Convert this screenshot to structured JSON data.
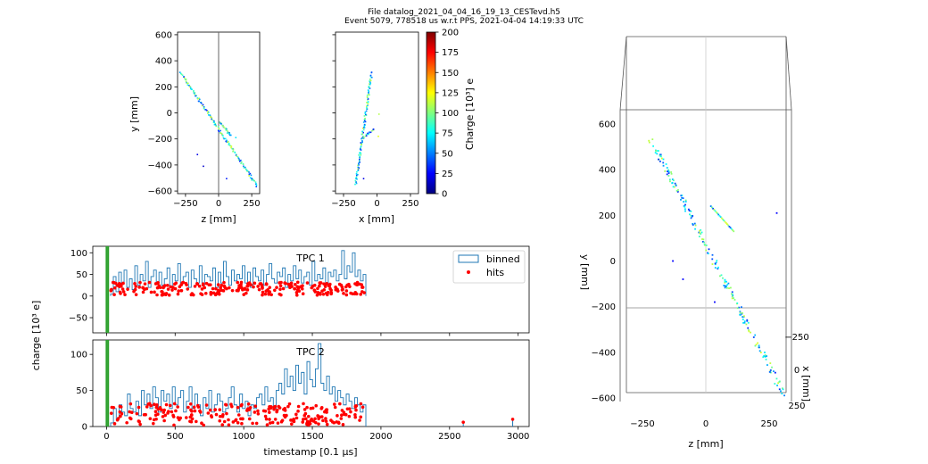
{
  "header": {
    "line1": "File datalog_2021_04_04_16_19_13_CESTevd.h5",
    "line2": "Event 5079, 778518 us w.r.t PPS, 2021-04-04 14:19:33 UTC"
  },
  "chart_data": [
    {
      "id": "zy",
      "type": "scatter",
      "xlabel": "z [mm]",
      "ylabel": "y [mm]",
      "xlim": [
        -310,
        310
      ],
      "ylim": [
        -620,
        620
      ],
      "xticks": [
        -250,
        0,
        250
      ],
      "yticks": [
        600,
        400,
        200,
        0,
        -200,
        -400,
        -600
      ],
      "vline": 0,
      "tracks": [
        {
          "from": [
            -285,
            305
          ],
          "to": [
            290,
            -560
          ],
          "n": 140
        },
        {
          "from": [
            10,
            -70
          ],
          "to": [
            90,
            -175
          ],
          "n": 25
        }
      ],
      "points": [
        {
          "x": -160,
          "y": -320,
          "q": 20
        },
        {
          "x": -115,
          "y": -410,
          "q": 15
        },
        {
          "x": 60,
          "y": -505,
          "q": 30
        },
        {
          "x": 130,
          "y": -190,
          "q": 70
        }
      ]
    },
    {
      "id": "xy",
      "type": "scatter",
      "xlabel": "x [mm]",
      "xlim": [
        -310,
        310
      ],
      "ylim": [
        -620,
        620
      ],
      "xticks": [
        -250,
        0,
        250
      ],
      "tracks": [
        {
          "from": [
            -160,
            -550
          ],
          "to": [
            -40,
            310
          ],
          "n": 110
        },
        {
          "from": [
            -110,
            -200
          ],
          "to": [
            -20,
            -120
          ],
          "n": 18
        }
      ],
      "points": [
        {
          "x": -100,
          "y": -505,
          "q": 20
        },
        {
          "x": 15,
          "y": -10,
          "q": 110
        },
        {
          "x": 10,
          "y": -180,
          "q": 120
        }
      ]
    },
    {
      "id": "colorbar",
      "type": "colorbar",
      "label": "Charge [10³] e",
      "min": 0,
      "max": 200,
      "ticks": [
        200,
        175,
        150,
        125,
        100,
        75,
        50,
        25,
        0
      ]
    },
    {
      "id": "tpc1",
      "type": "bar",
      "title": "TPC 1",
      "xlim": [
        -100,
        3080
      ],
      "ylim": [
        -85,
        115
      ],
      "xticks": [
        0,
        500,
        1000,
        1500,
        2000,
        2500,
        3000
      ],
      "yticks": [
        100,
        50,
        0,
        -50
      ],
      "legend": {
        "position": "top-right",
        "entries": [
          "binned",
          "hits"
        ]
      },
      "markers": [
        0,
        12
      ],
      "binned_start": 30,
      "binned_end": 1890,
      "binned_values": [
        5,
        45,
        10,
        55,
        30,
        60,
        20,
        40,
        15,
        70,
        25,
        50,
        35,
        80,
        20,
        45,
        60,
        30,
        55,
        25,
        40,
        65,
        20,
        50,
        35,
        75,
        30,
        45,
        55,
        20,
        60,
        40,
        30,
        70,
        25,
        50,
        45,
        35,
        65,
        20,
        55,
        30,
        80,
        45,
        25,
        60,
        35,
        50,
        40,
        70,
        30,
        55,
        20,
        65,
        45,
        35,
        60,
        25,
        50,
        75,
        40,
        30,
        55,
        45,
        65,
        20,
        50,
        35,
        70,
        40,
        60,
        30,
        45,
        55,
        25,
        80,
        35,
        50,
        40,
        65,
        30,
        55,
        45,
        60,
        35,
        50,
        105,
        40,
        70,
        55,
        100,
        45,
        60,
        35,
        50
      ],
      "hits_count": 260
    },
    {
      "id": "tpc2",
      "type": "bar",
      "title": "TPC 2",
      "xlabel": "timestamp [0.1 µs]",
      "xlim": [
        -100,
        3080
      ],
      "ylim": [
        0,
        120
      ],
      "xticks": [
        0,
        500,
        1000,
        1500,
        2000,
        2500,
        3000
      ],
      "yticks": [
        100,
        50,
        0
      ],
      "markers": [
        0,
        12
      ],
      "binned_start": 30,
      "binned_end": 1890,
      "binned_values": [
        5,
        25,
        10,
        30,
        20,
        15,
        45,
        25,
        20,
        35,
        15,
        50,
        30,
        45,
        25,
        55,
        40,
        20,
        50,
        35,
        45,
        25,
        55,
        30,
        40,
        50,
        20,
        35,
        55,
        25,
        45,
        30,
        15,
        40,
        25,
        50,
        20,
        30,
        45,
        35,
        20,
        25,
        40,
        55,
        30,
        20,
        45,
        25,
        35,
        15,
        30,
        25,
        40,
        45,
        30,
        55,
        35,
        40,
        25,
        50,
        60,
        45,
        80,
        55,
        70,
        50,
        85,
        60,
        75,
        45,
        90,
        65,
        55,
        80,
        115,
        60,
        50,
        70,
        45,
        55,
        35,
        50,
        40,
        30,
        45,
        35,
        25,
        40,
        30,
        20,
        30
      ],
      "late_hits": [
        {
          "x": 2600,
          "y": 6
        },
        {
          "x": 2960,
          "y": 10
        }
      ],
      "hits_count": 240
    },
    {
      "id": "shared",
      "ylabel": "charge [10³ e]"
    },
    {
      "id": "view3d",
      "type": "scatter3d",
      "xlabel": "z [mm]",
      "ylabel": "y [mm]",
      "zlabel": "x [mm]",
      "xticks": [
        -250,
        0,
        250
      ],
      "yticks": [
        600,
        400,
        200,
        0,
        -200,
        -400,
        -600
      ],
      "zticks": [
        -250,
        0,
        250
      ],
      "ylim": [
        -600,
        680
      ],
      "xlim": [
        -320,
        320
      ]
    }
  ]
}
